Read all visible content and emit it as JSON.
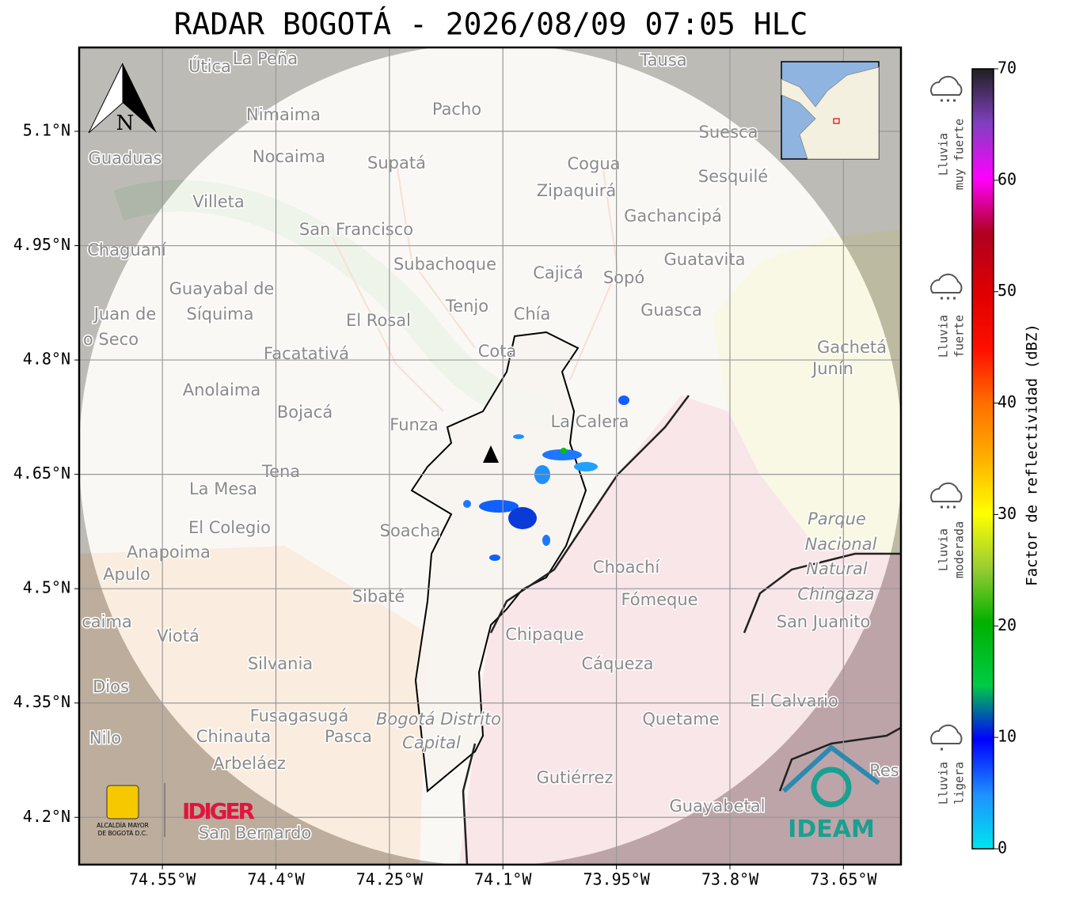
{
  "title": "RADAR BOGOTÁ - 2026/08/09 07:05 HLC",
  "map": {
    "xlim": [
      -74.66,
      -73.574
    ],
    "ylim": [
      4.138,
      5.21
    ],
    "grid": true,
    "xticks": [
      {
        "value": -74.55,
        "label": "74.55°W"
      },
      {
        "value": -74.4,
        "label": "74.4°W"
      },
      {
        "value": -74.25,
        "label": "74.25°W"
      },
      {
        "value": -74.1,
        "label": "74.1°W"
      },
      {
        "value": -73.95,
        "label": "73.95°W"
      },
      {
        "value": -73.8,
        "label": "73.8°W"
      },
      {
        "value": -73.65,
        "label": "73.65°W"
      }
    ],
    "yticks": [
      {
        "value": 5.1,
        "label": "5.1°N"
      },
      {
        "value": 4.95,
        "label": "4.95°N"
      },
      {
        "value": 4.8,
        "label": "4.8°N"
      },
      {
        "value": 4.65,
        "label": "4.65°N"
      },
      {
        "value": 4.5,
        "label": "4.5°N"
      },
      {
        "value": 4.35,
        "label": "4.35°N"
      },
      {
        "value": 4.2,
        "label": "4.2°N"
      }
    ],
    "places": [
      "Útica",
      "La Peña",
      "Tausa",
      "Pacho",
      "Nimaima",
      "Guaduas",
      "Nocaima",
      "Supatá",
      "Cogua",
      "Suesca",
      "Sesquilé",
      "Zipaquirá",
      "Villeta",
      "Gachancipá",
      "San Francisco",
      "Chaguaní",
      "Guatavita",
      "Subachoque",
      "Cajicá",
      "Sopó",
      "Guayabal de",
      "Síquima",
      "Juan de",
      "o Seco",
      "Tenjo",
      "Chía",
      "El Rosal",
      "Guasca",
      "Gachetá",
      "Junín",
      "Facatativá",
      "Cota",
      "Anolaima",
      "Bojacá",
      "Funza",
      "La Calera",
      "Tena",
      "La Mesa",
      "Parque",
      "Nacional",
      "Natural",
      "Chingaza",
      "El Colegio",
      "Soacha",
      "Anapoima",
      "Apulo",
      "Choachí",
      "Sibaté",
      "Fómeque",
      "San Juanito",
      "caima",
      "Viotá",
      "Chipaque",
      "Silvania",
      "Cáqueza",
      "Dios",
      "El Calvario",
      "Fusagasugá",
      "Bogotá Distrito",
      "Capital",
      "Quetame",
      "Nilo",
      "Chinauta",
      "Pasca",
      "Arbeláez",
      "Gutiérrez",
      "Guayabetal",
      "San Bernardo",
      "Res"
    ]
  },
  "colorbar": {
    "label": "Factor de reflectividad (dBZ)",
    "lim": [
      0,
      70
    ],
    "ticks": [
      0,
      10,
      20,
      30,
      40,
      50,
      60,
      70
    ],
    "categories": [
      [
        "Lluvia",
        "muy fuerte"
      ],
      [
        "Lluvia",
        "fuerte"
      ],
      [
        "Lluvia",
        "moderada"
      ],
      [
        "Lluvia",
        "ligera"
      ]
    ]
  },
  "logos": {
    "north": "N",
    "alcaldia": [
      "ALCALDÍA MAYOR",
      "DE BOGOTÁ D.C."
    ],
    "idiger": "IDIGER",
    "ideam": "IDEAM"
  }
}
